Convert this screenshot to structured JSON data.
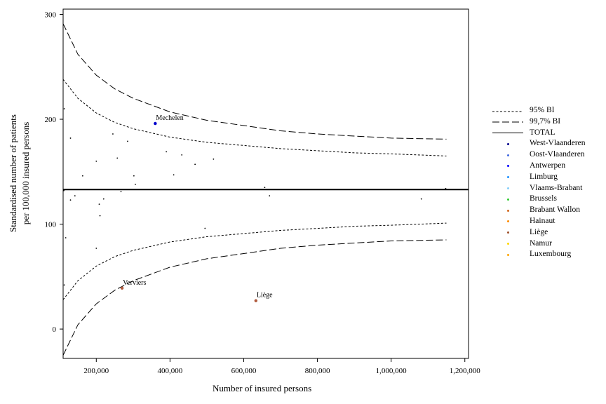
{
  "chart_data": {
    "type": "scatter",
    "title": "",
    "xlabel": "Number of insured persons",
    "ylabel": "Standardised number of patients\nper 100,000 insured persons",
    "xlim": [
      110000,
      1210000
    ],
    "ylim": [
      -28,
      305
    ],
    "x_ticks": [
      200000,
      400000,
      600000,
      800000,
      1000000,
      1200000
    ],
    "x_tick_labels": [
      "200,000",
      "400,000",
      "600,000",
      "800,000",
      "1,000,000",
      "1,200,000"
    ],
    "y_ticks": [
      0,
      100,
      200,
      300
    ],
    "y_tick_labels": [
      "0",
      "100",
      "200",
      "300"
    ],
    "total_rate": 133,
    "series": [
      {
        "name": "95% BI",
        "style": "short-dash",
        "x": [
          110000,
          150000,
          200000,
          250000,
          300000,
          400000,
          500000,
          600000,
          700000,
          800000,
          900000,
          1000000,
          1150000
        ],
        "upper": [
          238,
          220,
          206,
          197,
          191,
          183,
          178,
          175,
          172,
          170,
          168,
          167,
          165
        ],
        "lower": [
          28,
          46,
          60,
          69,
          75,
          83,
          88,
          91,
          94,
          96,
          98,
          99,
          101
        ]
      },
      {
        "name": "99,7% BI",
        "style": "long-dash",
        "x": [
          110000,
          150000,
          200000,
          250000,
          300000,
          400000,
          500000,
          600000,
          700000,
          800000,
          900000,
          1000000,
          1150000
        ],
        "upper": [
          291,
          262,
          242,
          229,
          220,
          207,
          199,
          194,
          189,
          186,
          184,
          182,
          181
        ],
        "lower": [
          -25,
          4,
          24,
          37,
          46,
          59,
          67,
          72,
          77,
          80,
          82,
          84,
          85
        ]
      },
      {
        "name": "TOTAL",
        "style": "solid"
      }
    ],
    "points": [
      {
        "x": 113000,
        "y": 210
      },
      {
        "x": 112000,
        "y": 132
      },
      {
        "x": 113000,
        "y": 42
      },
      {
        "x": 117000,
        "y": 87
      },
      {
        "x": 130000,
        "y": 182
      },
      {
        "x": 130000,
        "y": 123
      },
      {
        "x": 142000,
        "y": 127
      },
      {
        "x": 163000,
        "y": 146
      },
      {
        "x": 200000,
        "y": 160
      },
      {
        "x": 200000,
        "y": 77
      },
      {
        "x": 208000,
        "y": 119
      },
      {
        "x": 210000,
        "y": 108
      },
      {
        "x": 220000,
        "y": 124
      },
      {
        "x": 245000,
        "y": 186
      },
      {
        "x": 257000,
        "y": 163
      },
      {
        "x": 267000,
        "y": 131
      },
      {
        "x": 285000,
        "y": 179
      },
      {
        "x": 302000,
        "y": 146
      },
      {
        "x": 306000,
        "y": 138
      },
      {
        "x": 390000,
        "y": 169
      },
      {
        "x": 410000,
        "y": 147
      },
      {
        "x": 432000,
        "y": 166
      },
      {
        "x": 468000,
        "y": 157
      },
      {
        "x": 495000,
        "y": 96
      },
      {
        "x": 518000,
        "y": 162
      },
      {
        "x": 657000,
        "y": 135
      },
      {
        "x": 670000,
        "y": 127
      },
      {
        "x": 1082000,
        "y": 124
      },
      {
        "x": 1148000,
        "y": 134
      }
    ],
    "labeled_points": [
      {
        "label": "Mechelen",
        "x": 360000,
        "y": 196,
        "color": "#0000cc"
      },
      {
        "label": "Verviers",
        "x": 270000,
        "y": 39,
        "color": "#b05a3c"
      },
      {
        "label": "Liège",
        "x": 633000,
        "y": 27,
        "color": "#b05a3c"
      }
    ],
    "legend": [
      {
        "label": "95% BI",
        "kind": "short-dash"
      },
      {
        "label": "99,7% BI",
        "kind": "long-dash"
      },
      {
        "label": "TOTAL",
        "kind": "solid"
      },
      {
        "label": "West-Vlaanderen",
        "kind": "dot",
        "color": "#00008b"
      },
      {
        "label": "Oost-Vlaanderen",
        "kind": "dot",
        "color": "#4169e1"
      },
      {
        "label": "Antwerpen",
        "kind": "dot",
        "color": "#0000ff"
      },
      {
        "label": "Limburg",
        "kind": "dot",
        "color": "#1e90ff"
      },
      {
        "label": "Vlaams-Brabant",
        "kind": "dot",
        "color": "#87cefa"
      },
      {
        "label": "Brussels",
        "kind": "dot",
        "color": "#32cd32"
      },
      {
        "label": "Brabant Wallon",
        "kind": "dot",
        "color": "#d2691e"
      },
      {
        "label": "Hainaut",
        "kind": "dot",
        "color": "#ff8c00"
      },
      {
        "label": "Liège",
        "kind": "dot",
        "color": "#a0522d"
      },
      {
        "label": "Namur",
        "kind": "dot",
        "color": "#ffd700"
      },
      {
        "label": "Luxembourg",
        "kind": "dot",
        "color": "#ffa500"
      }
    ]
  }
}
